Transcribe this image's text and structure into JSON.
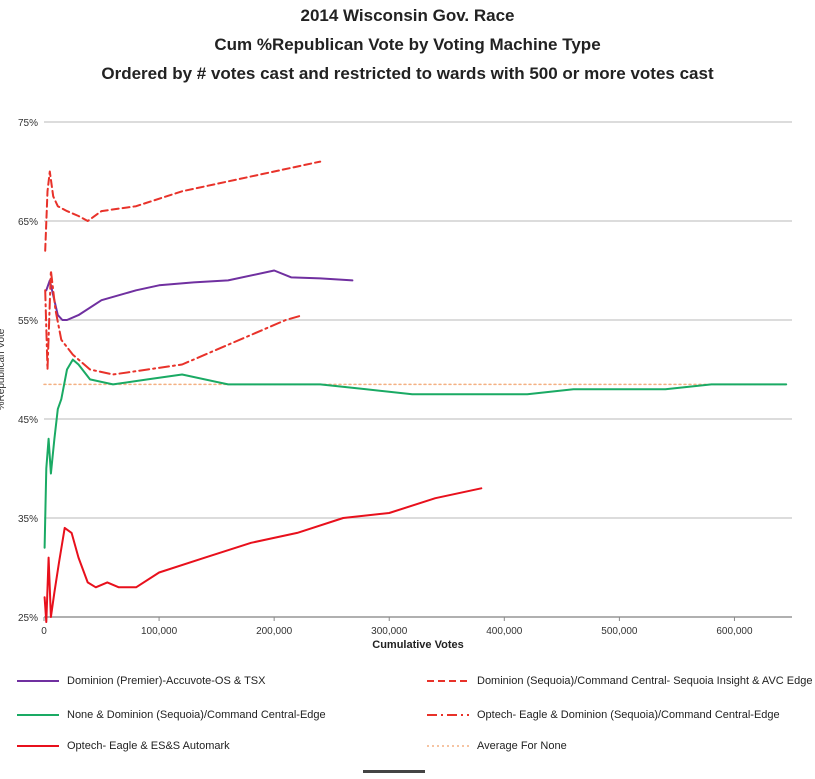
{
  "title_lines": [
    "2014 Wisconsin Gov. Race",
    "Cum %Republican Vote by Voting Machine Type",
    "Ordered by # votes cast and restricted to wards with 500 or more votes cast"
  ],
  "chart_data": {
    "type": "line",
    "title": "2014 Wisconsin Gov. Race",
    "xlabel": "Cumulative Votes",
    "ylabel": "%Republican Vote",
    "xlim": [
      0,
      650000
    ],
    "ylim": [
      25,
      75
    ],
    "x_ticks": [
      0,
      100000,
      200000,
      300000,
      400000,
      500000,
      600000
    ],
    "x_tick_labels": [
      "0",
      "100,000",
      "200,000",
      "300,000",
      "400,000",
      "500,000",
      "600,000"
    ],
    "y_ticks": [
      25,
      35,
      45,
      55,
      65,
      75
    ],
    "y_tick_labels": [
      "25%",
      "35%",
      "45%",
      "55%",
      "65%",
      "75%"
    ],
    "grid": true,
    "legend_position": "bottom",
    "series": [
      {
        "name": "Dominion (Premier)-Accuvote-OS & TSX",
        "color": "#7030A0",
        "style": "solid",
        "x": [
          2000,
          5000,
          8000,
          12000,
          16000,
          20000,
          30000,
          50000,
          80000,
          100000,
          130000,
          160000,
          200000,
          215000,
          240000,
          268000
        ],
        "y": [
          58,
          59,
          57.5,
          55.5,
          55,
          55,
          55.5,
          57,
          58,
          58.5,
          58.8,
          59,
          60,
          59.3,
          59.2,
          59
        ]
      },
      {
        "name": "Dominion (Sequoia)/Command Central- Sequoia Insight & AVC Edge",
        "color": "#E8322A",
        "style": "dashed",
        "x": [
          1000,
          3000,
          5000,
          8000,
          12000,
          20000,
          30000,
          38000,
          50000,
          80000,
          120000,
          160000,
          200000,
          240000
        ],
        "y": [
          62,
          68,
          70,
          67.5,
          66.5,
          66,
          65.5,
          65,
          66,
          66.5,
          68,
          69,
          70,
          71
        ]
      },
      {
        "name": "None  & Dominion (Sequoia)/Command Central-Edge",
        "color": "#1AAA64",
        "style": "solid",
        "x": [
          500,
          2000,
          4000,
          6000,
          9000,
          12000,
          15000,
          20000,
          25000,
          30000,
          40000,
          60000,
          90000,
          120000,
          160000,
          200000,
          240000,
          280000,
          320000,
          380000,
          420000,
          460000,
          500000,
          540000,
          580000,
          620000,
          645000
        ],
        "y": [
          32,
          40,
          43,
          39.5,
          43,
          46,
          47,
          50,
          51,
          50.5,
          49,
          48.5,
          49,
          49.5,
          48.5,
          48.5,
          48.5,
          48,
          47.5,
          47.5,
          47.5,
          48,
          48,
          48,
          48.5,
          48.5,
          48.5
        ]
      },
      {
        "name": "Optech- Eagle & Dominion (Sequoia)/Command Central-Edge",
        "color": "#E8322A",
        "style": "dashdot",
        "x": [
          1000,
          3000,
          6000,
          10000,
          15000,
          25000,
          40000,
          60000,
          90000,
          120000,
          150000,
          180000,
          210000,
          225000
        ],
        "y": [
          58,
          50,
          60,
          56,
          53,
          51.5,
          50,
          49.5,
          50,
          50.5,
          52,
          53.5,
          55,
          55.5
        ]
      },
      {
        "name": "Optech- Eagle & ES&S Automark",
        "color": "#E8101C",
        "style": "solid",
        "x": [
          500,
          2000,
          4000,
          6000,
          9000,
          13000,
          18000,
          24000,
          30000,
          38000,
          45000,
          55000,
          65000,
          80000,
          100000,
          140000,
          180000,
          220000,
          260000,
          300000,
          340000,
          380000
        ],
        "y": [
          27,
          24.5,
          31,
          25,
          27.5,
          30.5,
          34,
          33.5,
          31,
          28.5,
          28,
          28.5,
          28,
          28,
          29.5,
          31,
          32.5,
          33.5,
          35,
          35.5,
          37,
          38
        ]
      },
      {
        "name": "Average For None",
        "color": "#F4B183",
        "style": "dotted",
        "x": [
          0,
          645000
        ],
        "y": [
          48.5,
          48.5
        ]
      }
    ]
  }
}
